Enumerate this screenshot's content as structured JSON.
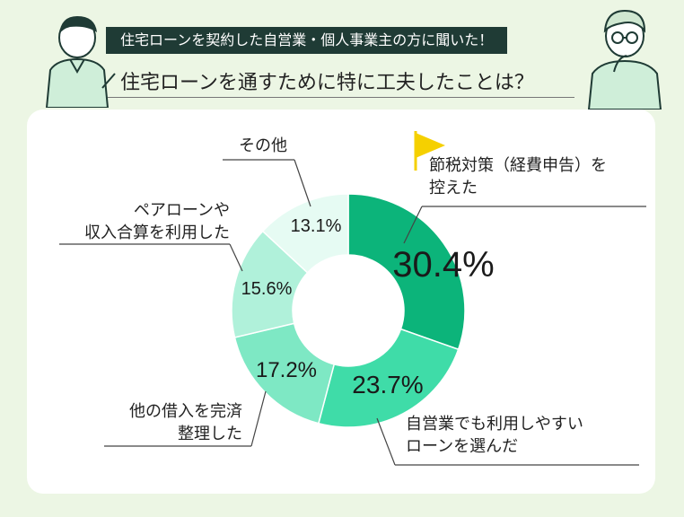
{
  "header": {
    "badge_text": "住宅ローンを契約した自営業・個人事業主の方に聞いた！",
    "title": "住宅ローンを通すために特に工夫したことは？"
  },
  "colors": {
    "background": "#ecf6e4",
    "badge": "#1f3b35",
    "accent_flag": "#f5d000",
    "slice_colors": [
      "#0cb47a",
      "#3fdca8",
      "#7ee8c4",
      "#b0f1da",
      "#e6fbf3"
    ]
  },
  "chart_data": {
    "type": "pie",
    "title": "",
    "categories": [
      "節税対策（経費申告）を控えた",
      "自営業でも利用しやすいローンを選んだ",
      "他の借入を完済整理した",
      "ペアローンや収入合算を利用した",
      "その他"
    ],
    "values": [
      30.4,
      23.7,
      17.2,
      15.6,
      13.1
    ],
    "unit": "%",
    "slices": [
      {
        "label_lines": [
          "節税対策（経費申告）を",
          "控えた"
        ],
        "value": 30.4,
        "display": "30.4%"
      },
      {
        "label_lines": [
          "自営業でも利用しやすい",
          "ローンを選んだ"
        ],
        "value": 23.7,
        "display": "23.7%"
      },
      {
        "label_lines": [
          "他の借入を完済",
          "整理した"
        ],
        "value": 17.2,
        "display": "17.2%"
      },
      {
        "label_lines": [
          "ペアローンや",
          "収入合算を利用した"
        ],
        "value": 15.6,
        "display": "15.6%"
      },
      {
        "label_lines": [
          "その他"
        ],
        "value": 13.1,
        "display": "13.1%"
      }
    ]
  }
}
